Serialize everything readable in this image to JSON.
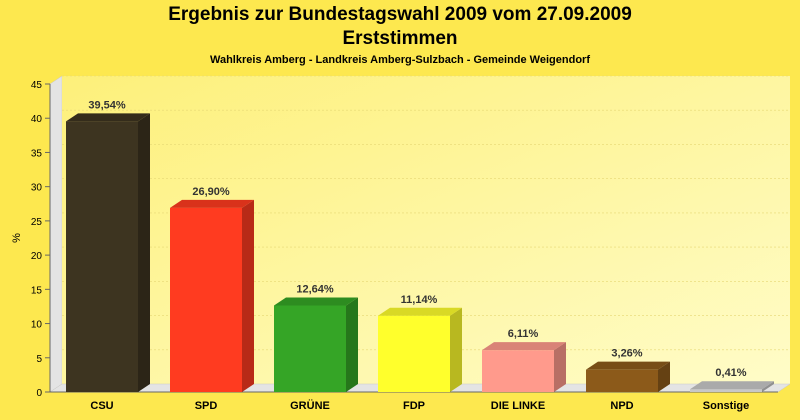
{
  "chart_data": {
    "type": "bar",
    "title": "Ergebnis zur Bundestagswahl 2009 vom 27.09.2009",
    "title2": "Erststimmen",
    "subtitle": "Wahlkreis Amberg - Landkreis Amberg-Sulzbach - Gemeinde Weigendorf",
    "ylabel": "%",
    "xlabel": "",
    "ylim": [
      0,
      45
    ],
    "yticks": [
      0,
      5,
      10,
      15,
      20,
      25,
      30,
      35,
      40,
      45
    ],
    "categories": [
      "CSU",
      "SPD",
      "GRÜNE",
      "FDP",
      "DIE LINKE",
      "NPD",
      "Sonstige"
    ],
    "values": [
      39.54,
      26.9,
      12.64,
      11.14,
      6.11,
      3.26,
      0.41
    ],
    "value_labels": [
      "39,54%",
      "26,90%",
      "12,64%",
      "11,14%",
      "6,11%",
      "3,26%",
      "0,41%"
    ],
    "colors": [
      "#3d3420",
      "#ff3b20",
      "#35a526",
      "#ffff2c",
      "#ff9a8c",
      "#8c5a1a",
      "#c8c8c8"
    ],
    "grid": true,
    "legend": "none"
  }
}
